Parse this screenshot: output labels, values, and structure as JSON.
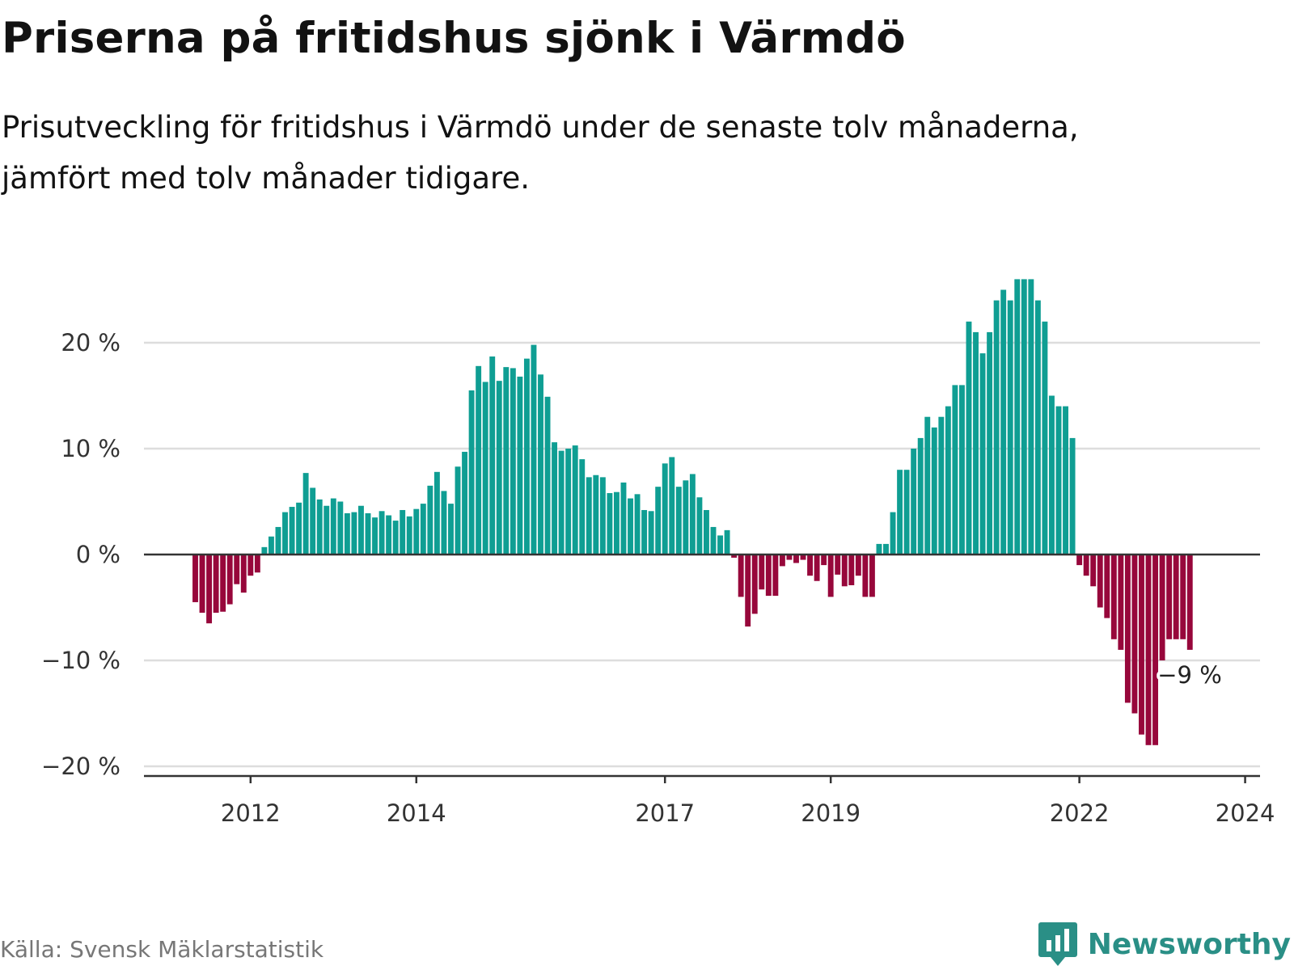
{
  "header": {
    "title": "Priserna på fritidshus sjönk i Värmdö",
    "subtitle_line1": "Prisutveckling för fritidshus i Värmdö under de senaste tolv månaderna,",
    "subtitle_line2": "jämfört med tolv månader tidigare."
  },
  "footer": {
    "source": "Källa: Svensk Mäklarstatistik",
    "brand": "Newsworthy"
  },
  "colors": {
    "positive": "#0f9e93",
    "negative": "#97073b",
    "grid": "#dddddd",
    "zero_line": "#333333",
    "brand": "#2a8f86"
  },
  "chart_data": {
    "type": "bar",
    "title": "Priserna på fritidshus sjönk i Värmdö",
    "xlabel": "",
    "ylabel": "",
    "unit": "%",
    "ylim": [
      -20,
      26
    ],
    "y_ticks": [
      {
        "value": 20,
        "label": "20 %"
      },
      {
        "value": 10,
        "label": "10 %"
      },
      {
        "value": 0,
        "label": "0 %"
      },
      {
        "value": -10,
        "label": "−10 %"
      },
      {
        "value": -20,
        "label": "−20 %"
      }
    ],
    "x_ticks": [
      {
        "index": 8,
        "label": "2012"
      },
      {
        "index": 32,
        "label": "2014"
      },
      {
        "index": 68,
        "label": "2017"
      },
      {
        "index": 92,
        "label": "2019"
      },
      {
        "index": 128,
        "label": "2022"
      },
      {
        "index": 152,
        "label": "2024"
      }
    ],
    "series": [
      {
        "name": "Prisutveckling",
        "values": [
          -4.5,
          -5.5,
          -6.5,
          -5.5,
          -5.4,
          -4.7,
          -2.8,
          -3.6,
          -2.0,
          -1.7,
          0.7,
          1.7,
          2.6,
          4.0,
          4.5,
          4.9,
          7.7,
          6.3,
          5.2,
          4.6,
          5.3,
          5.0,
          3.9,
          4.0,
          4.6,
          3.9,
          3.5,
          4.1,
          3.7,
          3.2,
          4.2,
          3.6,
          4.3,
          4.8,
          6.5,
          7.8,
          6.0,
          4.8,
          8.3,
          9.7,
          15.5,
          17.8,
          16.3,
          18.7,
          16.4,
          17.7,
          17.6,
          16.8,
          18.5,
          19.8,
          17.0,
          14.9,
          10.6,
          9.8,
          10.0,
          10.3,
          9.0,
          7.3,
          7.5,
          7.3,
          5.8,
          5.9,
          6.8,
          5.3,
          5.7,
          4.2,
          4.1,
          6.4,
          8.6,
          9.2,
          6.4,
          7.0,
          7.6,
          5.4,
          4.2,
          2.6,
          1.8,
          2.3,
          -0.3,
          -4.0,
          -6.8,
          -5.6,
          -3.3,
          -3.9,
          -3.9,
          -1.1,
          -0.5,
          -0.8,
          -0.5,
          -2.0,
          -2.5,
          -1.0,
          -4.0,
          -1.9,
          -3.0,
          -2.9,
          -2.0,
          -4.0,
          -4.0,
          1.0,
          1.0,
          4.0,
          8.0,
          8.0,
          10.0,
          11.0,
          13.0,
          12.0,
          13.0,
          14.0,
          16.0,
          16.0,
          22.0,
          21.0,
          19.0,
          21.0,
          24.0,
          25.0,
          24.0,
          26.0,
          26.0,
          26.0,
          24.0,
          22.0,
          15.0,
          14.0,
          14.0,
          11.0,
          -1.0,
          -2.0,
          -3.0,
          -5.0,
          -6.0,
          -8.0,
          -9.0,
          -14.0,
          -15.0,
          -17.0,
          -18.0,
          -18.0,
          -10.0,
          -8.0,
          -8.0,
          -8.0,
          -9.0
        ]
      }
    ],
    "annotation": {
      "label": "−9 %"
    }
  }
}
